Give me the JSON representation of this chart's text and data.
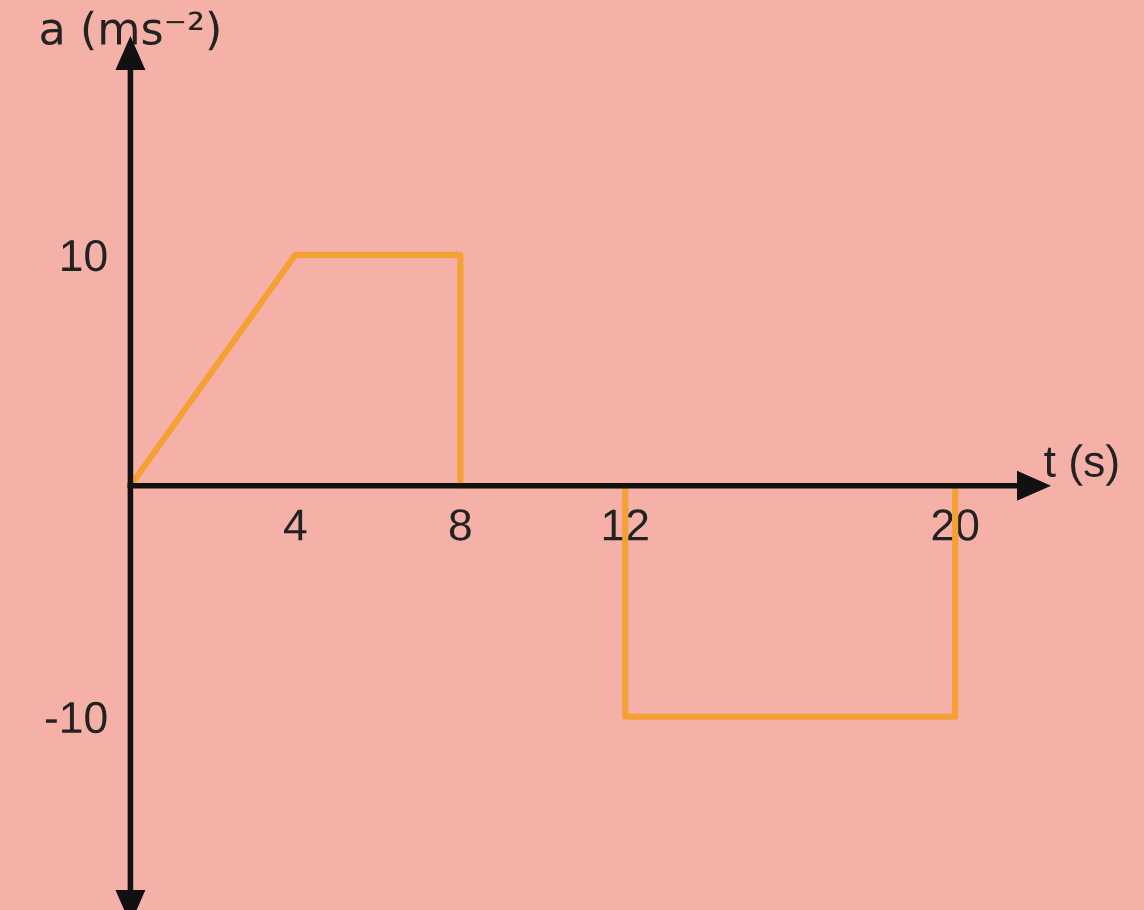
{
  "chart_data": {
    "type": "line",
    "xlabel": "t (s)",
    "ylabel": "a (ms⁻²)",
    "x": [
      0,
      4,
      8,
      8,
      12,
      12,
      20,
      20
    ],
    "series": [
      {
        "color": "#f5a033",
        "values": [
          0,
          10,
          10,
          0,
          0,
          -10,
          -10,
          0
        ]
      }
    ],
    "xlim": [
      0,
      21.5
    ],
    "ylim": [
      -17.5,
      18
    ],
    "xticks": [
      4,
      8,
      12,
      20
    ],
    "yticks": [
      10,
      {
        "value": -10,
        "label": "-10"
      }
    ],
    "grid": false,
    "legend": false,
    "marker": "none",
    "line_style": "solid"
  }
}
